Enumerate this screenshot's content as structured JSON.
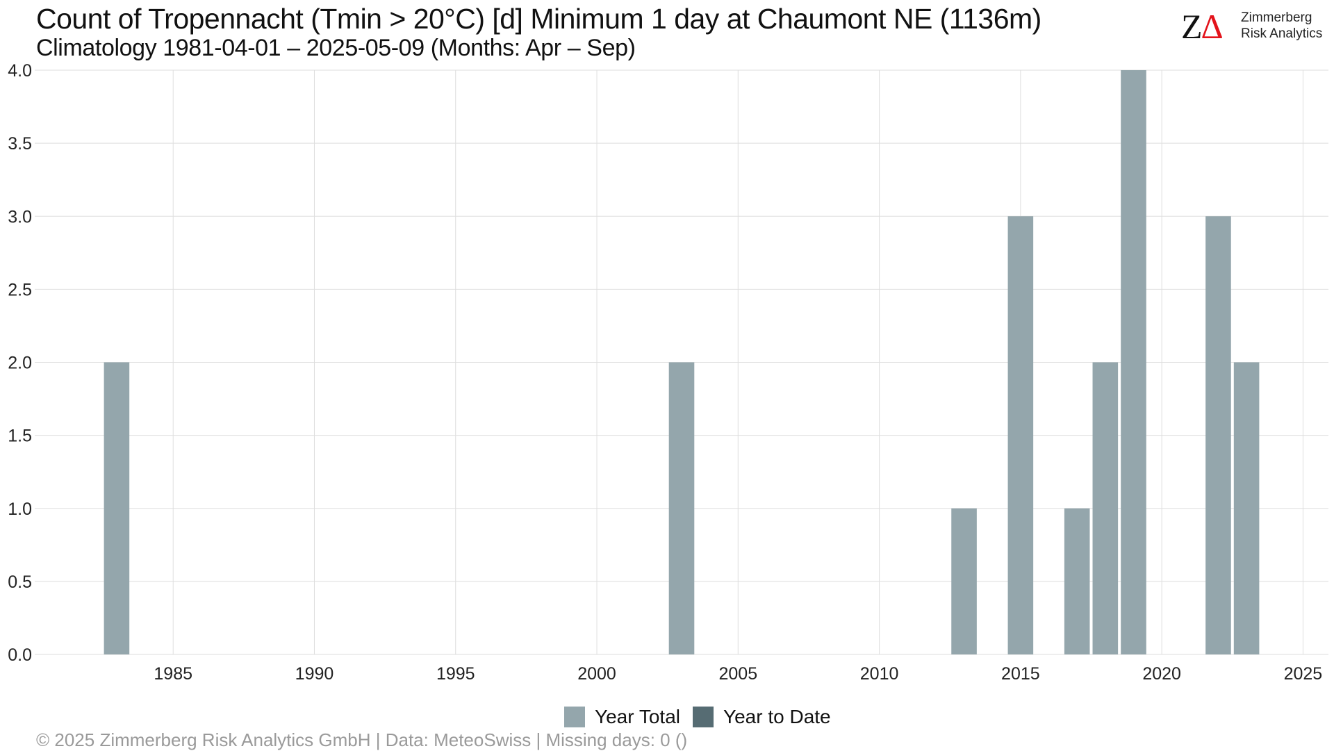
{
  "title": "Count of Tropennacht (Tmin > 20°C) [d] Minimum 1 day at Chaumont  NE (1136m)",
  "subtitle": "Climatology 1981-04-01 – 2025-05-09 (Months: Apr – Sep)",
  "logo": {
    "line1": "Zimmerberg",
    "line2": "Risk Analytics",
    "mark_z": "Z",
    "mark_delta": "Δ"
  },
  "footer": "©  2025 Zimmerberg Risk Analytics GmbH | Data: MeteoSwiss | Missing days: 0 ()",
  "colors": {
    "year_total": "#94a6ac",
    "year_to_date": "#566c73",
    "grid": "#dedede"
  },
  "legend": [
    {
      "label": "Year Total",
      "color": "#94a6ac"
    },
    {
      "label": "Year to Date",
      "color": "#566c73"
    }
  ],
  "chart_data": {
    "type": "bar",
    "title": "Count of Tropennacht (Tmin > 20°C) [d] Minimum 1 day at Chaumont  NE (1136m)",
    "xlabel": "",
    "ylabel": "",
    "xlim": [
      1980.1,
      2025.9
    ],
    "ylim": [
      0,
      4
    ],
    "x_ticks": [
      1985,
      1990,
      1995,
      2000,
      2005,
      2010,
      2015,
      2020,
      2025
    ],
    "y_ticks": [
      "0.0",
      "0.5",
      "1.0",
      "1.5",
      "2.0",
      "2.5",
      "3.0",
      "3.5",
      "4.0"
    ],
    "grid": true,
    "legend_position": "bottom",
    "series": [
      {
        "name": "Year Total",
        "x": [
          1983,
          2003,
          2013,
          2015,
          2017,
          2018,
          2019,
          2022,
          2023
        ],
        "values": [
          2,
          2,
          1,
          3,
          1,
          2,
          4,
          3,
          2
        ]
      },
      {
        "name": "Year to Date",
        "x": [],
        "values": []
      }
    ]
  }
}
